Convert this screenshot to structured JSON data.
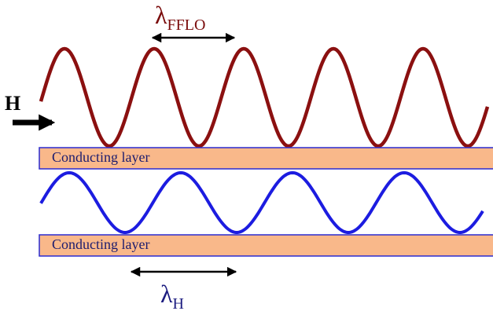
{
  "labels": {
    "lambda_fflo": {
      "symbol": "λ",
      "subscript": "FFLO"
    },
    "field": "H",
    "lambda_h": {
      "symbol": "λ",
      "subscript": "H"
    }
  },
  "layers": [
    {
      "label": "Conducting layer"
    },
    {
      "label": "Conducting layer"
    }
  ]
}
